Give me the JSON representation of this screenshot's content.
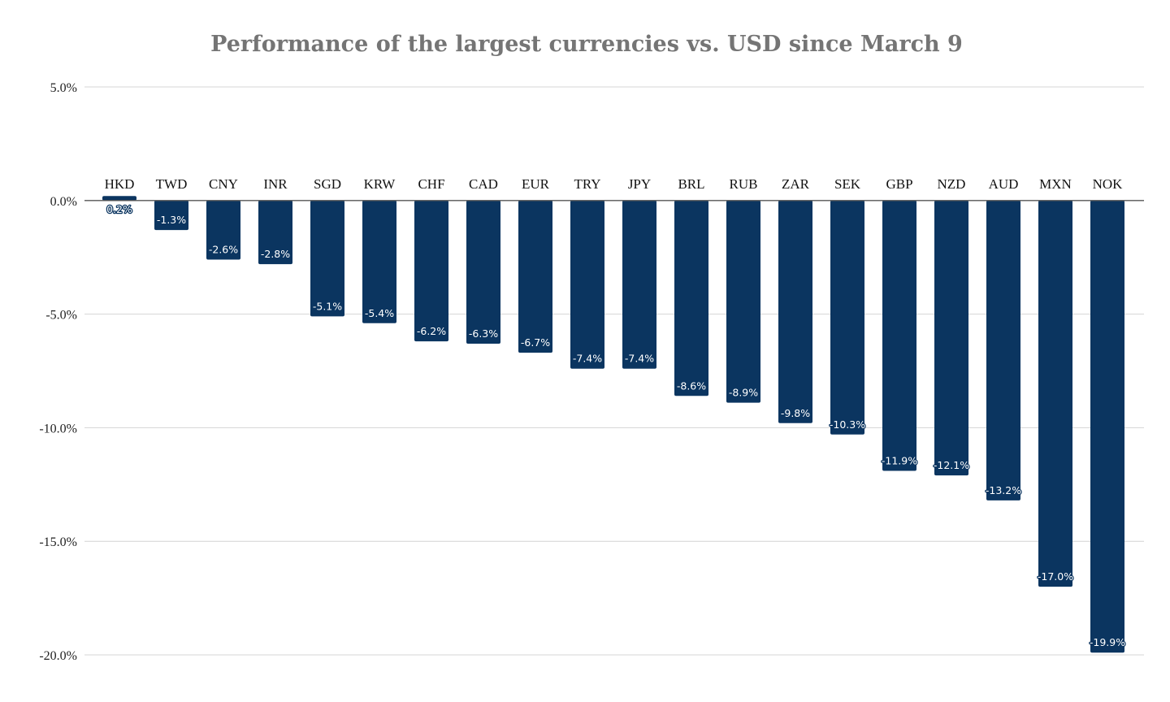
{
  "chart_data": {
    "type": "bar",
    "title": "Performance of the largest currencies vs. USD since March 9",
    "xlabel": "",
    "ylabel": "",
    "categories": [
      "HKD",
      "TWD",
      "CNY",
      "INR",
      "SGD",
      "KRW",
      "CHF",
      "CAD",
      "EUR",
      "TRY",
      "JPY",
      "BRL",
      "RUB",
      "ZAR",
      "SEK",
      "GBP",
      "NZD",
      "AUD",
      "MXN",
      "NOK"
    ],
    "values": [
      0.2,
      -1.3,
      -2.6,
      -2.8,
      -5.1,
      -5.4,
      -6.2,
      -6.3,
      -6.7,
      -7.4,
      -7.4,
      -8.6,
      -8.9,
      -9.8,
      -10.3,
      -11.9,
      -12.1,
      -13.2,
      -17.0,
      -19.9
    ],
    "data_labels": [
      "0.2%",
      "-1.3%",
      "-2.6%",
      "-2.8%",
      "-5.1%",
      "-5.4%",
      "-6.2%",
      "-6.3%",
      "-6.7%",
      "-7.4%",
      "-7.4%",
      "-8.6%",
      "-8.9%",
      "-9.8%",
      "-10.3%",
      "-11.9%",
      "-12.1%",
      "-13.2%",
      "-17.0%",
      "-19.9%"
    ],
    "ylim": [
      -20,
      5
    ],
    "yticks": [
      5,
      0,
      -5,
      -10,
      -15,
      -20
    ],
    "ytick_labels": [
      "5.0%",
      "0.0%",
      "-5.0%",
      "-10.0%",
      "-15.0%",
      "-20.0%"
    ],
    "grid": true,
    "legend": "none",
    "bar_color": "#0b3560",
    "category_label_position": "above-zero-line"
  }
}
